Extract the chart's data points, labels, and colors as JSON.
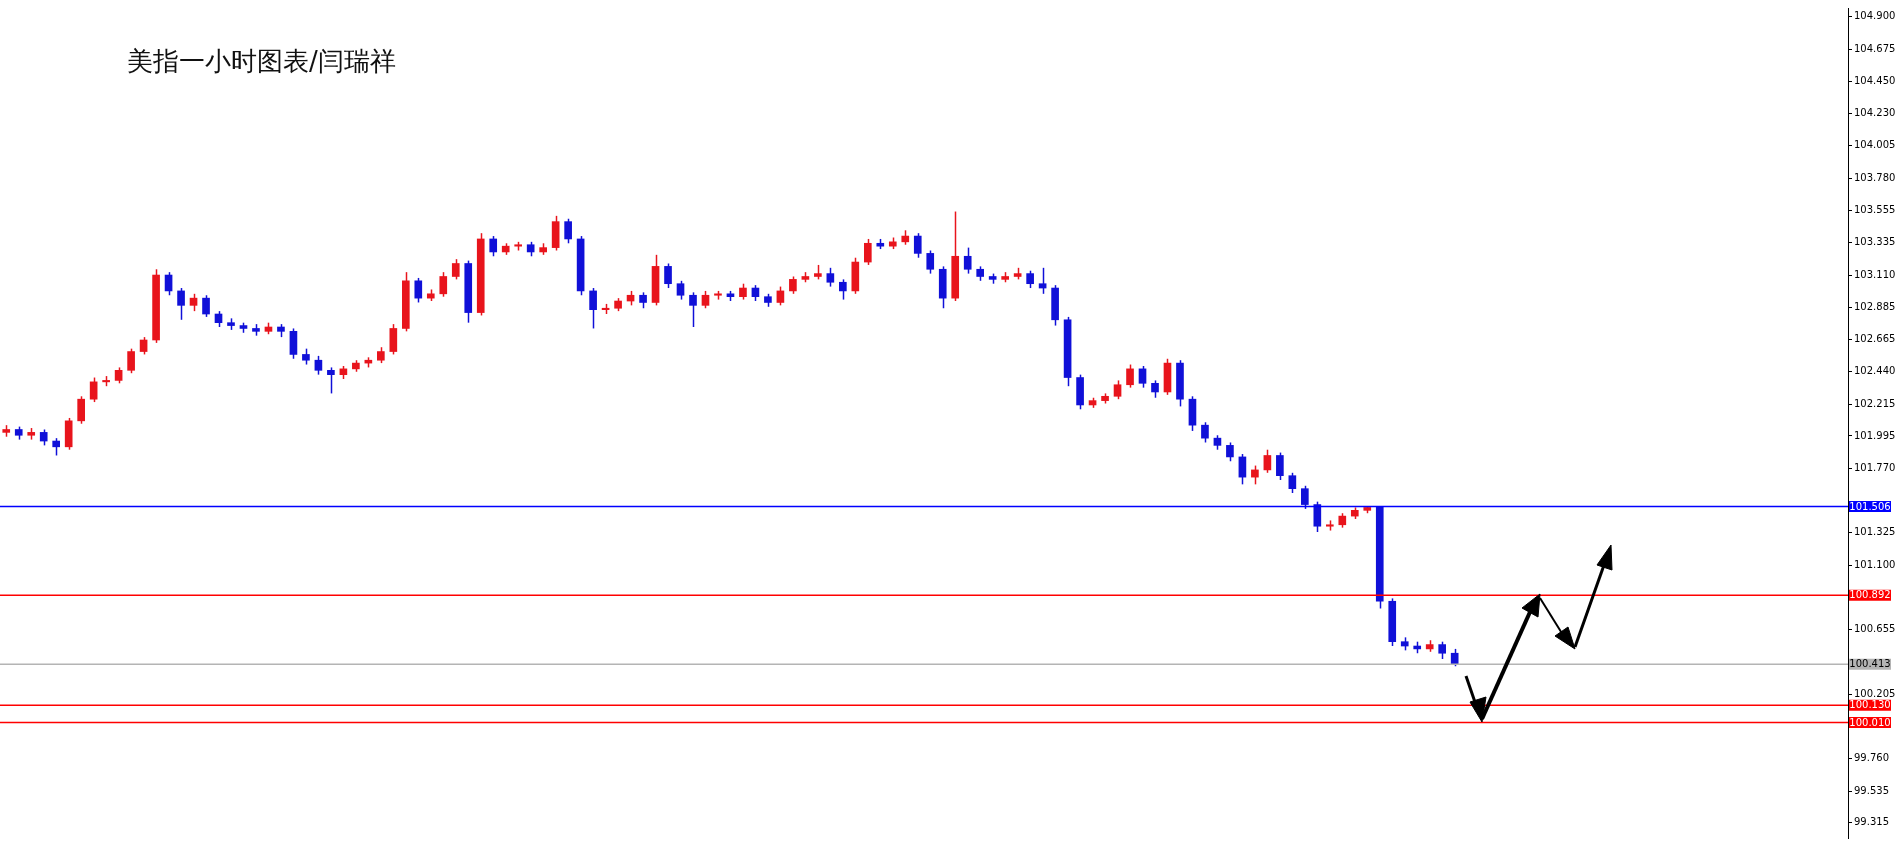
{
  "chart_data": {
    "type": "candlestick",
    "title": "美指一小时图表/闫瑞祥",
    "categories": [
      null,
      null,
      null,
      null,
      null,
      null,
      null,
      null,
      null,
      null,
      null,
      null,
      null,
      null,
      null,
      null,
      null,
      null,
      null,
      null,
      null,
      null,
      null,
      null,
      null,
      null,
      null,
      null,
      null,
      null,
      null,
      null,
      null,
      null,
      null,
      null,
      null,
      null,
      null,
      null,
      null,
      null,
      null,
      null,
      null,
      null,
      null,
      null,
      null,
      null,
      null,
      null,
      null,
      null,
      null,
      null,
      null,
      null,
      null,
      null,
      null,
      null,
      null,
      null,
      null,
      null,
      null,
      null,
      null,
      null,
      null,
      null,
      null,
      null,
      null,
      null,
      null,
      null,
      null,
      null,
      null,
      null,
      null,
      null,
      null,
      null,
      null,
      null,
      null,
      null,
      null,
      null,
      null,
      null,
      null,
      null,
      null,
      null,
      null,
      null,
      null,
      null,
      null,
      null,
      null,
      null,
      null,
      null,
      null,
      null,
      null,
      null,
      null,
      null,
      null,
      null,
      null,
      null,
      null,
      null,
      null,
      null,
      null,
      null,
      null,
      null,
      null,
      null,
      null,
      null,
      null,
      null,
      null,
      null,
      null,
      null,
      null,
      null,
      null,
      null,
      null,
      null,
      null,
      null,
      null,
      null,
      null,
      null
    ],
    "ohlc": [
      [
        102.02,
        102.07,
        101.99,
        102.04
      ],
      [
        102.04,
        102.06,
        101.97,
        102.0
      ],
      [
        102.0,
        102.05,
        101.97,
        102.02
      ],
      [
        102.02,
        102.04,
        101.93,
        101.96
      ],
      [
        101.96,
        101.98,
        101.86,
        101.92
      ],
      [
        101.92,
        102.12,
        101.9,
        102.1
      ],
      [
        102.1,
        102.27,
        102.08,
        102.25
      ],
      [
        102.25,
        102.4,
        102.23,
        102.37
      ],
      [
        102.37,
        102.41,
        102.34,
        102.38
      ],
      [
        102.38,
        102.47,
        102.36,
        102.45
      ],
      [
        102.45,
        102.6,
        102.43,
        102.58
      ],
      [
        102.58,
        102.68,
        102.56,
        102.66
      ],
      [
        102.66,
        103.15,
        102.64,
        103.11
      ],
      [
        103.11,
        103.13,
        102.97,
        103.0
      ],
      [
        103.0,
        103.02,
        102.8,
        102.9
      ],
      [
        102.9,
        102.98,
        102.86,
        102.95
      ],
      [
        102.95,
        102.97,
        102.82,
        102.84
      ],
      [
        102.84,
        102.86,
        102.75,
        102.78
      ],
      [
        102.78,
        102.81,
        102.73,
        102.76
      ],
      [
        102.76,
        102.78,
        102.71,
        102.74
      ],
      [
        102.74,
        102.77,
        102.69,
        102.72
      ],
      [
        102.72,
        102.78,
        102.7,
        102.75
      ],
      [
        102.75,
        102.77,
        102.68,
        102.72
      ],
      [
        102.72,
        102.74,
        102.53,
        102.56
      ],
      [
        102.56,
        102.6,
        102.49,
        102.52
      ],
      [
        102.52,
        102.55,
        102.42,
        102.45
      ],
      [
        102.45,
        102.47,
        102.29,
        102.42
      ],
      [
        102.42,
        102.48,
        102.39,
        102.46
      ],
      [
        102.46,
        102.52,
        102.44,
        102.5
      ],
      [
        102.5,
        102.54,
        102.47,
        102.52
      ],
      [
        102.52,
        102.61,
        102.5,
        102.58
      ],
      [
        102.58,
        102.77,
        102.56,
        102.74
      ],
      [
        102.74,
        103.13,
        102.72,
        103.07
      ],
      [
        103.07,
        103.09,
        102.92,
        102.95
      ],
      [
        102.95,
        103.01,
        102.93,
        102.98
      ],
      [
        102.98,
        103.13,
        102.96,
        103.1
      ],
      [
        103.1,
        103.22,
        103.08,
        103.19
      ],
      [
        103.19,
        103.21,
        102.78,
        102.85
      ],
      [
        102.85,
        103.4,
        102.83,
        103.36
      ],
      [
        103.36,
        103.38,
        103.24,
        103.27
      ],
      [
        103.27,
        103.33,
        103.25,
        103.31
      ],
      [
        103.31,
        103.34,
        103.28,
        103.32
      ],
      [
        103.32,
        103.34,
        103.24,
        103.27
      ],
      [
        103.27,
        103.33,
        103.25,
        103.3
      ],
      [
        103.3,
        103.52,
        103.28,
        103.48
      ],
      [
        103.48,
        103.5,
        103.33,
        103.36
      ],
      [
        103.36,
        103.38,
        102.97,
        103.0
      ],
      [
        103.0,
        103.02,
        102.74,
        102.87
      ],
      [
        102.87,
        102.91,
        102.84,
        102.88
      ],
      [
        102.88,
        102.95,
        102.86,
        102.93
      ],
      [
        102.93,
        103.0,
        102.9,
        102.97
      ],
      [
        102.97,
        102.99,
        102.88,
        102.92
      ],
      [
        102.92,
        103.25,
        102.9,
        103.17
      ],
      [
        103.17,
        103.19,
        103.02,
        103.05
      ],
      [
        103.05,
        103.07,
        102.94,
        102.97
      ],
      [
        102.97,
        102.99,
        102.75,
        102.9
      ],
      [
        102.9,
        103.0,
        102.88,
        102.97
      ],
      [
        102.97,
        103.0,
        102.94,
        102.98
      ],
      [
        102.98,
        103.0,
        102.93,
        102.96
      ],
      [
        102.96,
        103.05,
        102.94,
        103.02
      ],
      [
        103.02,
        103.04,
        102.93,
        102.96
      ],
      [
        102.96,
        102.98,
        102.89,
        102.92
      ],
      [
        102.92,
        103.03,
        102.9,
        103.0
      ],
      [
        103.0,
        103.1,
        102.98,
        103.08
      ],
      [
        103.08,
        103.13,
        103.06,
        103.1
      ],
      [
        103.1,
        103.18,
        103.08,
        103.12
      ],
      [
        103.12,
        103.16,
        103.03,
        103.06
      ],
      [
        103.06,
        103.08,
        102.94,
        103.0
      ],
      [
        103.0,
        103.23,
        102.98,
        103.2
      ],
      [
        103.2,
        103.36,
        103.18,
        103.33
      ],
      [
        103.33,
        103.36,
        103.29,
        103.31
      ],
      [
        103.31,
        103.37,
        103.29,
        103.34
      ],
      [
        103.34,
        103.42,
        103.32,
        103.38
      ],
      [
        103.38,
        103.4,
        103.23,
        103.26
      ],
      [
        103.26,
        103.28,
        103.12,
        103.15
      ],
      [
        103.15,
        103.17,
        102.88,
        102.95
      ],
      [
        102.95,
        103.55,
        102.93,
        103.24
      ],
      [
        103.24,
        103.3,
        103.12,
        103.15
      ],
      [
        103.15,
        103.17,
        103.07,
        103.1
      ],
      [
        103.1,
        103.12,
        103.05,
        103.08
      ],
      [
        103.08,
        103.13,
        103.06,
        103.1
      ],
      [
        103.1,
        103.16,
        103.08,
        103.12
      ],
      [
        103.12,
        103.14,
        103.02,
        103.05
      ],
      [
        103.05,
        103.16,
        102.98,
        103.02
      ],
      [
        103.02,
        103.04,
        102.76,
        102.8
      ],
      [
        102.8,
        102.82,
        102.34,
        102.4
      ],
      [
        102.4,
        102.42,
        102.18,
        102.21
      ],
      [
        102.21,
        102.26,
        102.19,
        102.24
      ],
      [
        102.24,
        102.29,
        102.22,
        102.27
      ],
      [
        102.27,
        102.38,
        102.25,
        102.35
      ],
      [
        102.35,
        102.49,
        102.33,
        102.46
      ],
      [
        102.46,
        102.48,
        102.33,
        102.36
      ],
      [
        102.36,
        102.38,
        102.26,
        102.3
      ],
      [
        102.3,
        102.53,
        102.28,
        102.5
      ],
      [
        102.5,
        102.52,
        102.2,
        102.25
      ],
      [
        102.25,
        102.27,
        102.03,
        102.07
      ],
      [
        102.07,
        102.09,
        101.95,
        101.98
      ],
      [
        101.98,
        102.0,
        101.9,
        101.93
      ],
      [
        101.93,
        101.95,
        101.82,
        101.85
      ],
      [
        101.85,
        101.87,
        101.66,
        101.71
      ],
      [
        101.71,
        101.79,
        101.66,
        101.76
      ],
      [
        101.76,
        101.9,
        101.74,
        101.86
      ],
      [
        101.86,
        101.88,
        101.69,
        101.72
      ],
      [
        101.72,
        101.74,
        101.6,
        101.63
      ],
      [
        101.63,
        101.65,
        101.49,
        101.52
      ],
      [
        101.52,
        101.54,
        101.33,
        101.37
      ],
      [
        101.37,
        101.41,
        101.34,
        101.38
      ],
      [
        101.38,
        101.46,
        101.36,
        101.44
      ],
      [
        101.44,
        101.5,
        101.42,
        101.48
      ],
      [
        101.48,
        101.51,
        101.46,
        101.5
      ],
      [
        101.5,
        101.51,
        100.8,
        100.85
      ],
      [
        100.85,
        100.87,
        100.54,
        100.57
      ],
      [
        100.57,
        100.6,
        100.51,
        100.54
      ],
      [
        100.54,
        100.57,
        100.49,
        100.52
      ],
      [
        100.52,
        100.58,
        100.5,
        100.55
      ],
      [
        100.55,
        100.57,
        100.45,
        100.49
      ],
      [
        100.49,
        100.52,
        100.4,
        100.413
      ],
      null,
      null,
      null,
      null,
      null,
      null,
      null,
      null,
      null,
      null,
      null,
      null,
      null,
      null,
      null,
      null,
      null,
      null,
      null,
      null,
      null,
      null,
      null,
      null,
      null,
      null,
      null,
      null,
      null,
      null,
      null
    ],
    "colors": [
      "#e8141c",
      "#1010d8",
      "#e8141c",
      "#1010d8",
      "#1010d8",
      "#e8141c",
      "#e8141c",
      "#e8141c",
      "#e8141c",
      "#e8141c",
      "#e8141c",
      "#e8141c",
      "#e8141c",
      "#1010d8",
      "#1010d8",
      "#e8141c",
      "#1010d8",
      "#1010d8",
      "#1010d8",
      "#1010d8",
      "#1010d8",
      "#e8141c",
      "#1010d8",
      "#1010d8",
      "#1010d8",
      "#1010d8",
      "#1010d8",
      "#e8141c",
      "#e8141c",
      "#e8141c",
      "#e8141c",
      "#e8141c",
      "#e8141c",
      "#1010d8",
      "#e8141c",
      "#e8141c",
      "#e8141c",
      "#1010d8",
      "#e8141c",
      "#1010d8",
      "#e8141c",
      "#e8141c",
      "#1010d8",
      "#e8141c",
      "#e8141c",
      "#1010d8",
      "#1010d8",
      "#1010d8",
      "#e8141c",
      "#e8141c",
      "#e8141c",
      "#1010d8",
      "#e8141c",
      "#1010d8",
      "#1010d8",
      "#1010d8",
      "#e8141c",
      "#e8141c",
      "#1010d8",
      "#e8141c",
      "#1010d8",
      "#1010d8",
      "#e8141c",
      "#e8141c",
      "#e8141c",
      "#e8141c",
      "#1010d8",
      "#1010d8",
      "#e8141c",
      "#e8141c",
      "#1010d8",
      "#e8141c",
      "#e8141c",
      "#1010d8",
      "#1010d8",
      "#1010d8",
      "#e8141c",
      "#1010d8",
      "#1010d8",
      "#1010d8",
      "#e8141c",
      "#e8141c",
      "#1010d8",
      "#1010d8",
      "#1010d8",
      "#1010d8",
      "#1010d8",
      "#e8141c",
      "#e8141c",
      "#e8141c",
      "#e8141c",
      "#1010d8",
      "#1010d8",
      "#e8141c",
      "#1010d8",
      "#1010d8",
      "#1010d8",
      "#1010d8",
      "#1010d8",
      "#1010d8",
      "#e8141c",
      "#e8141c",
      "#1010d8",
      "#1010d8",
      "#1010d8",
      "#1010d8",
      "#e8141c",
      "#e8141c",
      "#e8141c",
      "#e8141c",
      "#1010d8",
      "#1010d8",
      "#1010d8",
      "#1010d8",
      "#e8141c",
      "#1010d8",
      "#1010d8",
      null,
      null,
      null,
      null,
      null,
      null,
      null,
      null,
      null,
      null,
      null,
      null,
      null,
      null,
      null,
      null,
      null,
      null,
      null,
      null,
      null,
      null,
      null,
      null,
      null,
      null,
      null,
      null,
      null,
      null,
      null
    ],
    "ylim": [
      99.21,
      104.96
    ],
    "yticks": [
      {
        "value": 104.9,
        "label": "104.900"
      },
      {
        "value": 104.675,
        "label": "104.675"
      },
      {
        "value": 104.45,
        "label": "104.450"
      },
      {
        "value": 104.23,
        "label": "104.230"
      },
      {
        "value": 104.005,
        "label": "104.005"
      },
      {
        "value": 103.78,
        "label": "103.780"
      },
      {
        "value": 103.555,
        "label": "103.555"
      },
      {
        "value": 103.335,
        "label": "103.335"
      },
      {
        "value": 103.11,
        "label": "103.110"
      },
      {
        "value": 102.885,
        "label": "102.885"
      },
      {
        "value": 102.665,
        "label": "102.665"
      },
      {
        "value": 102.44,
        "label": "102.440"
      },
      {
        "value": 102.215,
        "label": "102.215"
      },
      {
        "value": 101.995,
        "label": "101.995"
      },
      {
        "value": 101.77,
        "label": "101.770"
      },
      {
        "value": 101.325,
        "label": "101.325"
      },
      {
        "value": 101.1,
        "label": "101.100"
      },
      {
        "value": 100.655,
        "label": "100.655"
      },
      {
        "value": 100.205,
        "label": "100.205"
      },
      {
        "value": 99.76,
        "label": "99.760"
      },
      {
        "value": 99.535,
        "label": "99.535"
      },
      {
        "value": 99.315,
        "label": "99.315"
      }
    ],
    "ref_lines": [
      {
        "axis": "y",
        "value": 101.506,
        "label": "101.506",
        "color": "#0000ff"
      },
      {
        "axis": "y",
        "value": 100.892,
        "label": "100.892",
        "color": "#ff0000"
      },
      {
        "axis": "y",
        "value": 100.413,
        "label": "100.413",
        "color": "#b4b4b4"
      },
      {
        "axis": "y",
        "value": 100.13,
        "label": "100.130",
        "color": "#ff0000"
      },
      {
        "axis": "y",
        "value": 100.01,
        "label": "100.010",
        "color": "#ff0000"
      }
    ],
    "tick_labels": "y"
  }
}
